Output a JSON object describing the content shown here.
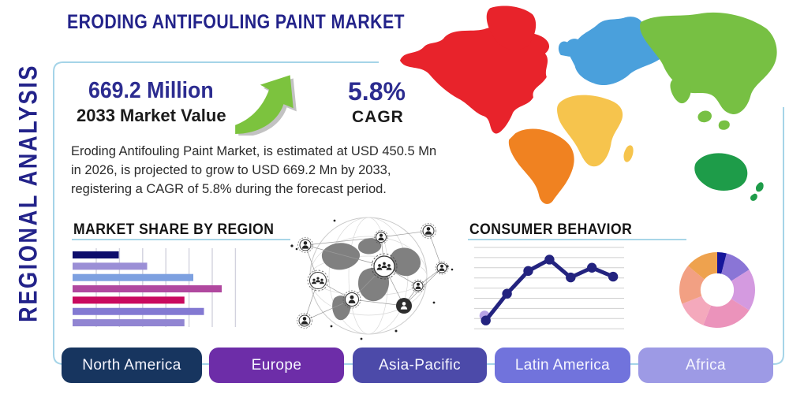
{
  "page_title": "ERODING ANTIFOULING PAINT MARKET",
  "side_label": "REGIONAL ANALYSIS",
  "stats": {
    "market_value": "669.2 Million",
    "market_value_label": "2033 Market Value",
    "cagr_value": "5.8%",
    "cagr_label": "CAGR"
  },
  "description_lines": [
    "Eroding Antifouling Paint Market, is estimated at USD 450.5 Mn",
    "in 2026, is projected to grow to USD 669.2 Mn by 2033,",
    "registering a CAGR of 5.8% during the forecast period."
  ],
  "section_headings": {
    "market_share": "MARKET SHARE BY REGION",
    "consumer_behavior": "CONSUMER BEHAVIOR"
  },
  "regions": [
    {
      "label": "North America",
      "color": "#17355f"
    },
    {
      "label": "Europe",
      "color": "#6d2da8"
    },
    {
      "label": "Asia-Pacific",
      "color": "#4c4aa9"
    },
    {
      "label": "Latin America",
      "color": "#7173dc"
    },
    {
      "label": "Africa",
      "color": "#9d9ae5"
    }
  ],
  "icons": {
    "growth_arrow": "up-right-curved-green-arrow",
    "globe_network": "connected-globe-with-people-nodes"
  },
  "colors": {
    "frame_accent": "#a5d4e8",
    "navy_text": "#23238a",
    "heading_text": "#141414",
    "body_text": "#2b2b2b",
    "arrow_green": "#7cc33e"
  },
  "map": {
    "continents": {
      "north_america": {
        "name": "North America",
        "color": "#e8232b"
      },
      "south_america": {
        "name": "South America",
        "color": "#f08221"
      },
      "europe": {
        "name": "Europe",
        "color": "#4aa0dc"
      },
      "africa": {
        "name": "Africa",
        "color": "#f6c44d"
      },
      "asia": {
        "name": "Asia",
        "color": "#77c043"
      },
      "oceania": {
        "name": "Australia / Oceania",
        "color": "#1e9c49"
      }
    }
  },
  "chart_data": [
    {
      "type": "bar",
      "title": "MARKET SHARE BY REGION",
      "orientation": "horizontal",
      "categories": [
        "bar-1",
        "bar-2",
        "bar-3",
        "bar-4",
        "bar-5",
        "bar-6",
        "bar-7"
      ],
      "values": [
        26,
        42,
        68,
        84,
        63,
        74,
        63
      ],
      "xlim": [
        0,
        100
      ],
      "grid": true,
      "axis_labels_visible": false,
      "colors": [
        "#0d0d6b",
        "#9b8fd6",
        "#7da0e0",
        "#b0489f",
        "#c9095f",
        "#8379d2",
        "#9185d2"
      ]
    },
    {
      "type": "line",
      "title": "CONSUMER BEHAVIOR",
      "x": [
        1,
        2,
        3,
        4,
        5,
        6,
        7
      ],
      "y": [
        10,
        43,
        71,
        85,
        63,
        75,
        64
      ],
      "ylim": [
        0,
        100
      ],
      "grid": true,
      "axis_labels_visible": false,
      "line_color": "#23237f",
      "highlight_dot_color": "#b7a3e6",
      "highlight_dot_at_point": 1
    },
    {
      "type": "pie",
      "title": "regional share donut",
      "values": [
        4,
        12,
        18,
        22,
        13,
        17,
        14
      ],
      "donut_hole_ratio": 0.44,
      "start_angle_deg": 0,
      "colors": [
        "#15159b",
        "#8a75d6",
        "#d49ae0",
        "#eb93bb",
        "#f4a9bc",
        "#f2a083",
        "#eea24e"
      ]
    }
  ]
}
